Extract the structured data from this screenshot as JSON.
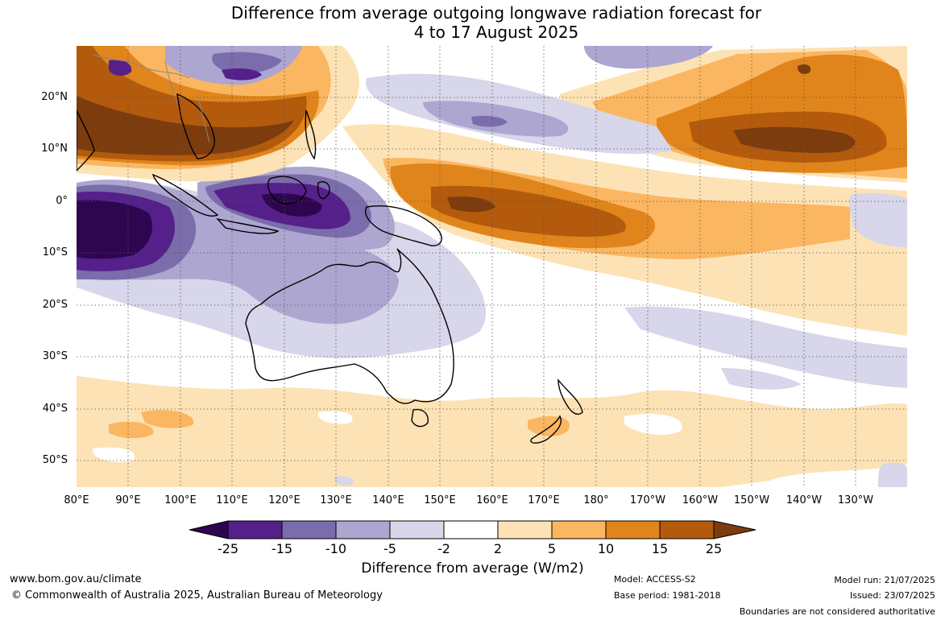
{
  "title_line1": "Difference from average outgoing longwave radiation forecast for",
  "title_line2": "4 to 17 August 2025",
  "lat_labels": [
    "20°N",
    "10°N",
    "0°",
    "10°S",
    "20°S",
    "30°S",
    "40°S",
    "50°S"
  ],
  "lon_labels": [
    "80°E",
    "90°E",
    "100°E",
    "110°E",
    "120°E",
    "130°E",
    "140°E",
    "150°E",
    "160°E",
    "170°E",
    "180°",
    "170°W",
    "160°W",
    "150°W",
    "140°W",
    "130°W"
  ],
  "colorbar": {
    "labels": [
      "-25",
      "-15",
      "-10",
      "-5",
      "-2",
      "2",
      "5",
      "10",
      "15",
      "25"
    ],
    "colors": [
      "#2e0650",
      "#55208a",
      "#7b6cab",
      "#aca6d0",
      "#d7d6ea",
      "#ffffff",
      "#fde2b5",
      "#fbb661",
      "#e0851c",
      "#b35a0d",
      "#7c3c0e"
    ],
    "title": "Difference from average (W/m2)"
  },
  "footer": {
    "website": "www.bom.gov.au/climate",
    "copyright": "© Commonwealth of Australia 2025, Australian Bureau of Meteorology",
    "model": "Model: ACCESS-S2",
    "base_period": "Base period: 1981-2018",
    "model_run": "Model run: 21/07/2025",
    "issued": "Issued: 23/07/2025",
    "disclaimer": "Boundaries are not considered authoritative"
  }
}
